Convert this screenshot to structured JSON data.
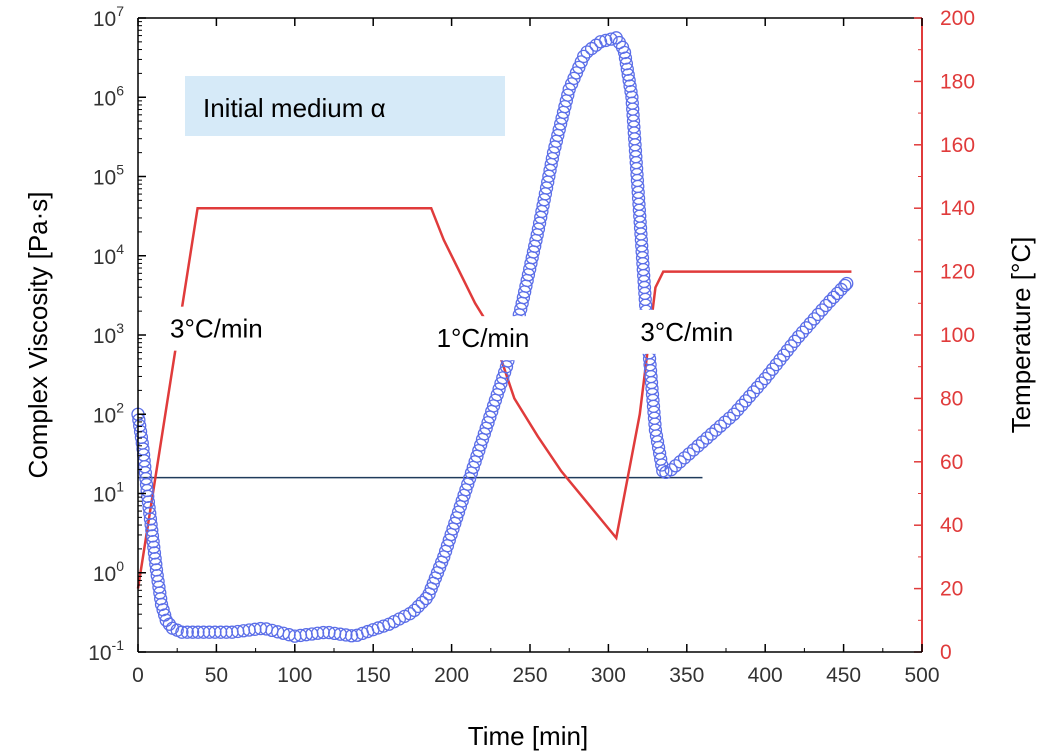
{
  "chart_data": {
    "type": "line",
    "xlabel": "Time [min]",
    "ylabel_left": "Complex Viscosity [Pa·s]",
    "ylabel_right": "Temperature [°C]",
    "xlim": [
      0,
      500
    ],
    "ylim_left_log10": [
      -1,
      7
    ],
    "ylim_right": [
      0,
      200
    ],
    "x_ticks": [
      "0",
      "50",
      "100",
      "150",
      "200",
      "250",
      "300",
      "350",
      "400",
      "450",
      "500"
    ],
    "y_left_ticks": [
      {
        "base": "10",
        "exp": "-1"
      },
      {
        "base": "10",
        "exp": "0"
      },
      {
        "base": "10",
        "exp": "1"
      },
      {
        "base": "10",
        "exp": "2"
      },
      {
        "base": "10",
        "exp": "3"
      },
      {
        "base": "10",
        "exp": "4"
      },
      {
        "base": "10",
        "exp": "5"
      },
      {
        "base": "10",
        "exp": "6"
      },
      {
        "base": "10",
        "exp": "7"
      }
    ],
    "y_right_ticks": [
      "0",
      "20",
      "40",
      "60",
      "80",
      "100",
      "120",
      "140",
      "160",
      "180",
      "200"
    ],
    "left_axis_scale": "log",
    "grid": false,
    "legend_box": "Initial medium α",
    "annotations": [
      {
        "text": "3°C/min",
        "x": 50,
        "y_temp": 102
      },
      {
        "text": "1°C/min",
        "x": 220,
        "y_temp": 99
      },
      {
        "text": "3°C/min",
        "x": 350,
        "y_temp": 101
      }
    ],
    "reference_line": {
      "y_temp": 55,
      "x_start": 0,
      "x_end": 360
    },
    "series": [
      {
        "axis": "left",
        "marker": "open-circle",
        "color": "#5b6ee8",
        "points": [
          [
            0,
            2.0
          ],
          [
            3,
            1.6
          ],
          [
            6,
            1.0
          ],
          [
            9,
            0.5
          ],
          [
            12,
            0.0
          ],
          [
            15,
            -0.4
          ],
          [
            18,
            -0.6
          ],
          [
            22,
            -0.7
          ],
          [
            28,
            -0.75
          ],
          [
            40,
            -0.75
          ],
          [
            60,
            -0.75
          ],
          [
            80,
            -0.7
          ],
          [
            100,
            -0.8
          ],
          [
            120,
            -0.75
          ],
          [
            138,
            -0.8
          ],
          [
            160,
            -0.65
          ],
          [
            175,
            -0.5
          ],
          [
            185,
            -0.3
          ],
          [
            195,
            0.2
          ],
          [
            205,
            0.8
          ],
          [
            215,
            1.4
          ],
          [
            225,
            2.0
          ],
          [
            235,
            2.6
          ],
          [
            245,
            3.4
          ],
          [
            255,
            4.3
          ],
          [
            265,
            5.3
          ],
          [
            275,
            6.1
          ],
          [
            285,
            6.55
          ],
          [
            295,
            6.7
          ],
          [
            305,
            6.75
          ],
          [
            310,
            6.6
          ],
          [
            315,
            6.0
          ],
          [
            320,
            4.5
          ],
          [
            325,
            3.0
          ],
          [
            330,
            1.8
          ],
          [
            335,
            1.25
          ],
          [
            340,
            1.3
          ],
          [
            360,
            1.65
          ],
          [
            380,
            2.0
          ],
          [
            400,
            2.45
          ],
          [
            420,
            2.95
          ],
          [
            440,
            3.4
          ],
          [
            452,
            3.65
          ]
        ]
      },
      {
        "axis": "right",
        "style": "line",
        "color": "#e03b3b",
        "points": [
          [
            0,
            20
          ],
          [
            38,
            140
          ],
          [
            187,
            140
          ],
          [
            195,
            130
          ],
          [
            205,
            120
          ],
          [
            215,
            110
          ],
          [
            225,
            102
          ],
          [
            240,
            80
          ],
          [
            255,
            68
          ],
          [
            270,
            57
          ],
          [
            285,
            48
          ],
          [
            295,
            42
          ],
          [
            305,
            36
          ],
          [
            320,
            75
          ],
          [
            330,
            115
          ],
          [
            335,
            120
          ],
          [
            455,
            120
          ]
        ]
      }
    ]
  }
}
